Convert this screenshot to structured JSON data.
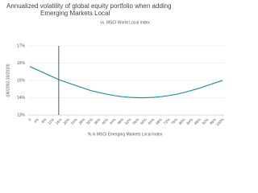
{
  "chart_data": {
    "type": "line",
    "title": "Annualized volatility of global equity portfolio when adding Emerging Markets Local",
    "subtitle": "vs. MSCI World Local Index",
    "y_label": "(06/2002-10/2019)",
    "x_label": "% in MSCI Emerging Markets Local Index",
    "x": [
      0,
      4,
      8,
      12,
      16,
      20,
      24,
      28,
      32,
      36,
      40,
      44,
      48,
      52,
      56,
      60,
      64,
      68,
      72,
      76,
      80,
      84,
      88,
      92,
      96,
      100
    ],
    "series": [
      {
        "color": "#2a8f8f",
        "values": [
          15.8,
          15.6,
          15.4,
          15.2,
          15.0,
          14.85,
          14.7,
          14.55,
          14.4,
          14.3,
          14.2,
          14.12,
          14.06,
          14.02,
          14.0,
          14.0,
          14.02,
          14.06,
          14.12,
          14.2,
          14.3,
          14.42,
          14.55,
          14.7,
          14.85,
          15.0
        ]
      }
    ],
    "reference_x": 15,
    "reference_color": "#4a5a6a",
    "xlim": [
      0,
      100
    ],
    "xticks": [
      0,
      {
        "value": 4,
        "label": "4%"
      },
      {
        "value": 8,
        "label": "8%"
      },
      {
        "value": 12,
        "label": "12%"
      },
      {
        "value": 16,
        "label": "16%"
      },
      {
        "value": 20,
        "label": "20%"
      },
      {
        "value": 24,
        "label": "24%"
      },
      {
        "value": 28,
        "label": "28%"
      },
      {
        "value": 32,
        "label": "32%"
      },
      {
        "value": 36,
        "label": "36%"
      },
      {
        "value": 40,
        "label": "40%"
      },
      {
        "value": 44,
        "label": "44%"
      },
      {
        "value": 48,
        "label": "48%"
      },
      {
        "value": 52,
        "label": "52%"
      },
      {
        "value": 56,
        "label": "56%"
      },
      {
        "value": 60,
        "label": "60%"
      },
      {
        "value": 64,
        "label": "64%"
      },
      {
        "value": 68,
        "label": "68%"
      },
      {
        "value": 72,
        "label": "72%"
      },
      {
        "value": 76,
        "label": "76%"
      },
      {
        "value": 80,
        "label": "80%"
      },
      {
        "value": 84,
        "label": "84%"
      },
      {
        "value": 88,
        "label": "88%"
      },
      {
        "value": 92,
        "label": "92%"
      },
      {
        "value": 96,
        "label": "96%"
      },
      {
        "value": 100,
        "label": "100%"
      }
    ],
    "ylim": [
      13,
      17
    ],
    "yticks": [
      {
        "value": 13,
        "label": "13%"
      },
      {
        "value": 14,
        "label": "14%"
      },
      {
        "value": 15,
        "label": "15%"
      },
      {
        "value": 16,
        "label": "16%"
      },
      {
        "value": 17,
        "label": "17%"
      }
    ],
    "grid": true
  }
}
